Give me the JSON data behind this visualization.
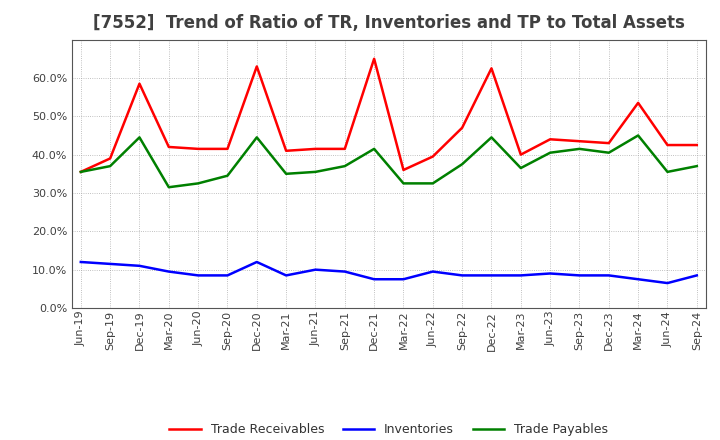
{
  "title": "[7552]  Trend of Ratio of TR, Inventories and TP to Total Assets",
  "x_labels": [
    "Jun-19",
    "Sep-19",
    "Dec-19",
    "Mar-20",
    "Jun-20",
    "Sep-20",
    "Dec-20",
    "Mar-21",
    "Jun-21",
    "Sep-21",
    "Dec-21",
    "Mar-22",
    "Jun-22",
    "Sep-22",
    "Dec-22",
    "Mar-23",
    "Jun-23",
    "Sep-23",
    "Dec-23",
    "Mar-24",
    "Jun-24",
    "Sep-24"
  ],
  "trade_receivables": [
    35.5,
    39.0,
    58.5,
    42.0,
    41.5,
    41.5,
    63.0,
    41.0,
    41.5,
    41.5,
    65.0,
    36.0,
    39.5,
    47.0,
    62.5,
    40.0,
    44.0,
    43.5,
    43.0,
    53.5,
    42.5,
    42.5
  ],
  "inventories": [
    12.0,
    11.5,
    11.0,
    9.5,
    8.5,
    8.5,
    12.0,
    8.5,
    10.0,
    9.5,
    7.5,
    7.5,
    9.5,
    8.5,
    8.5,
    8.5,
    9.0,
    8.5,
    8.5,
    7.5,
    6.5,
    8.5
  ],
  "trade_payables": [
    35.5,
    37.0,
    44.5,
    31.5,
    32.5,
    34.5,
    44.5,
    35.0,
    35.5,
    37.0,
    41.5,
    32.5,
    32.5,
    37.5,
    44.5,
    36.5,
    40.5,
    41.5,
    40.5,
    45.0,
    35.5,
    37.0
  ],
  "tr_color": "#ff0000",
  "inv_color": "#0000ff",
  "tp_color": "#008000",
  "ylim": [
    0,
    70
  ],
  "yticks": [
    0.0,
    10.0,
    20.0,
    30.0,
    40.0,
    50.0,
    60.0
  ],
  "legend_labels": [
    "Trade Receivables",
    "Inventories",
    "Trade Payables"
  ],
  "background_color": "#ffffff",
  "grid_color": "#999999",
  "title_color": "#404040",
  "title_fontsize": 12,
  "tick_fontsize": 8,
  "line_width": 1.8
}
